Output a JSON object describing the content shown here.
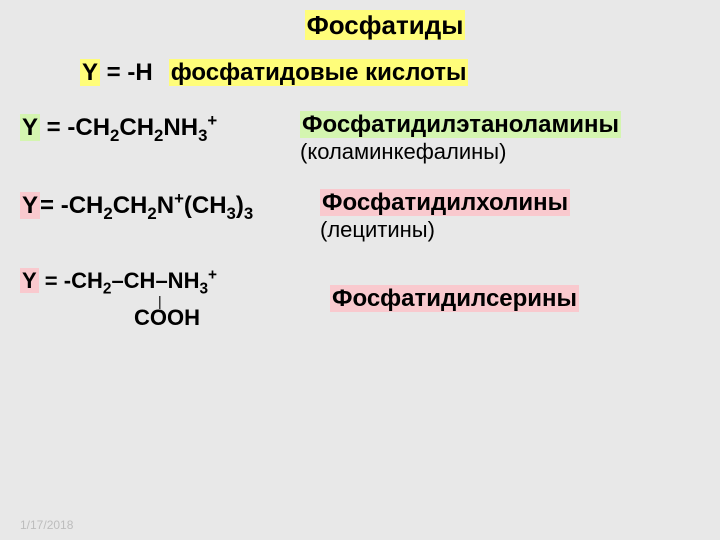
{
  "colors": {
    "background": "#e8e8e8",
    "highlight_yellow": "#fffd7a",
    "highlight_green": "#d4f5b0",
    "highlight_pink": "#f9c9ce",
    "text": "#000000",
    "date_color": "#bdbdbd"
  },
  "typography": {
    "title_fontsize": 26,
    "body_fontsize": 24,
    "note_fontsize": 22,
    "font_family": "Arial, sans-serif",
    "font_weight": "bold"
  },
  "title": "Фосфатиды",
  "rows": [
    {
      "y_prefix": "Y",
      "eq": " = ",
      "formula_plain": "-Н",
      "name": "фосфатидовые кислоты",
      "name_highlight": "yellow"
    },
    {
      "y_prefix": "Y",
      "eq": " = ",
      "formula_html": "-CH<sub>2</sub>CH<sub>2</sub>NH<sub>3</sub><sup>+</sup>",
      "name": "Фосфатидилэтаноламины",
      "note": "(коламинкефалины)",
      "name_highlight": "green"
    },
    {
      "y_prefix": "Y",
      "eq": "= ",
      "formula_html": "-CH<sub>2</sub>CH<sub>2</sub>N<sup>+</sup>(CH<sub>3</sub>)<sub>3</sub>",
      "name": "Фосфатидилхолины",
      "note": "(лецитины)",
      "name_highlight": "pink"
    },
    {
      "y_prefix": "Y",
      "eq": " = ",
      "serine_line1_html": "-CH<sub>2</sub>–CH–NH<sub>3</sub><sup>+</sup>",
      "serine_cooh": "COOH",
      "name": "Фосфатидилсерины",
      "name_highlight": "pink"
    }
  ],
  "date": "1/17/2018"
}
